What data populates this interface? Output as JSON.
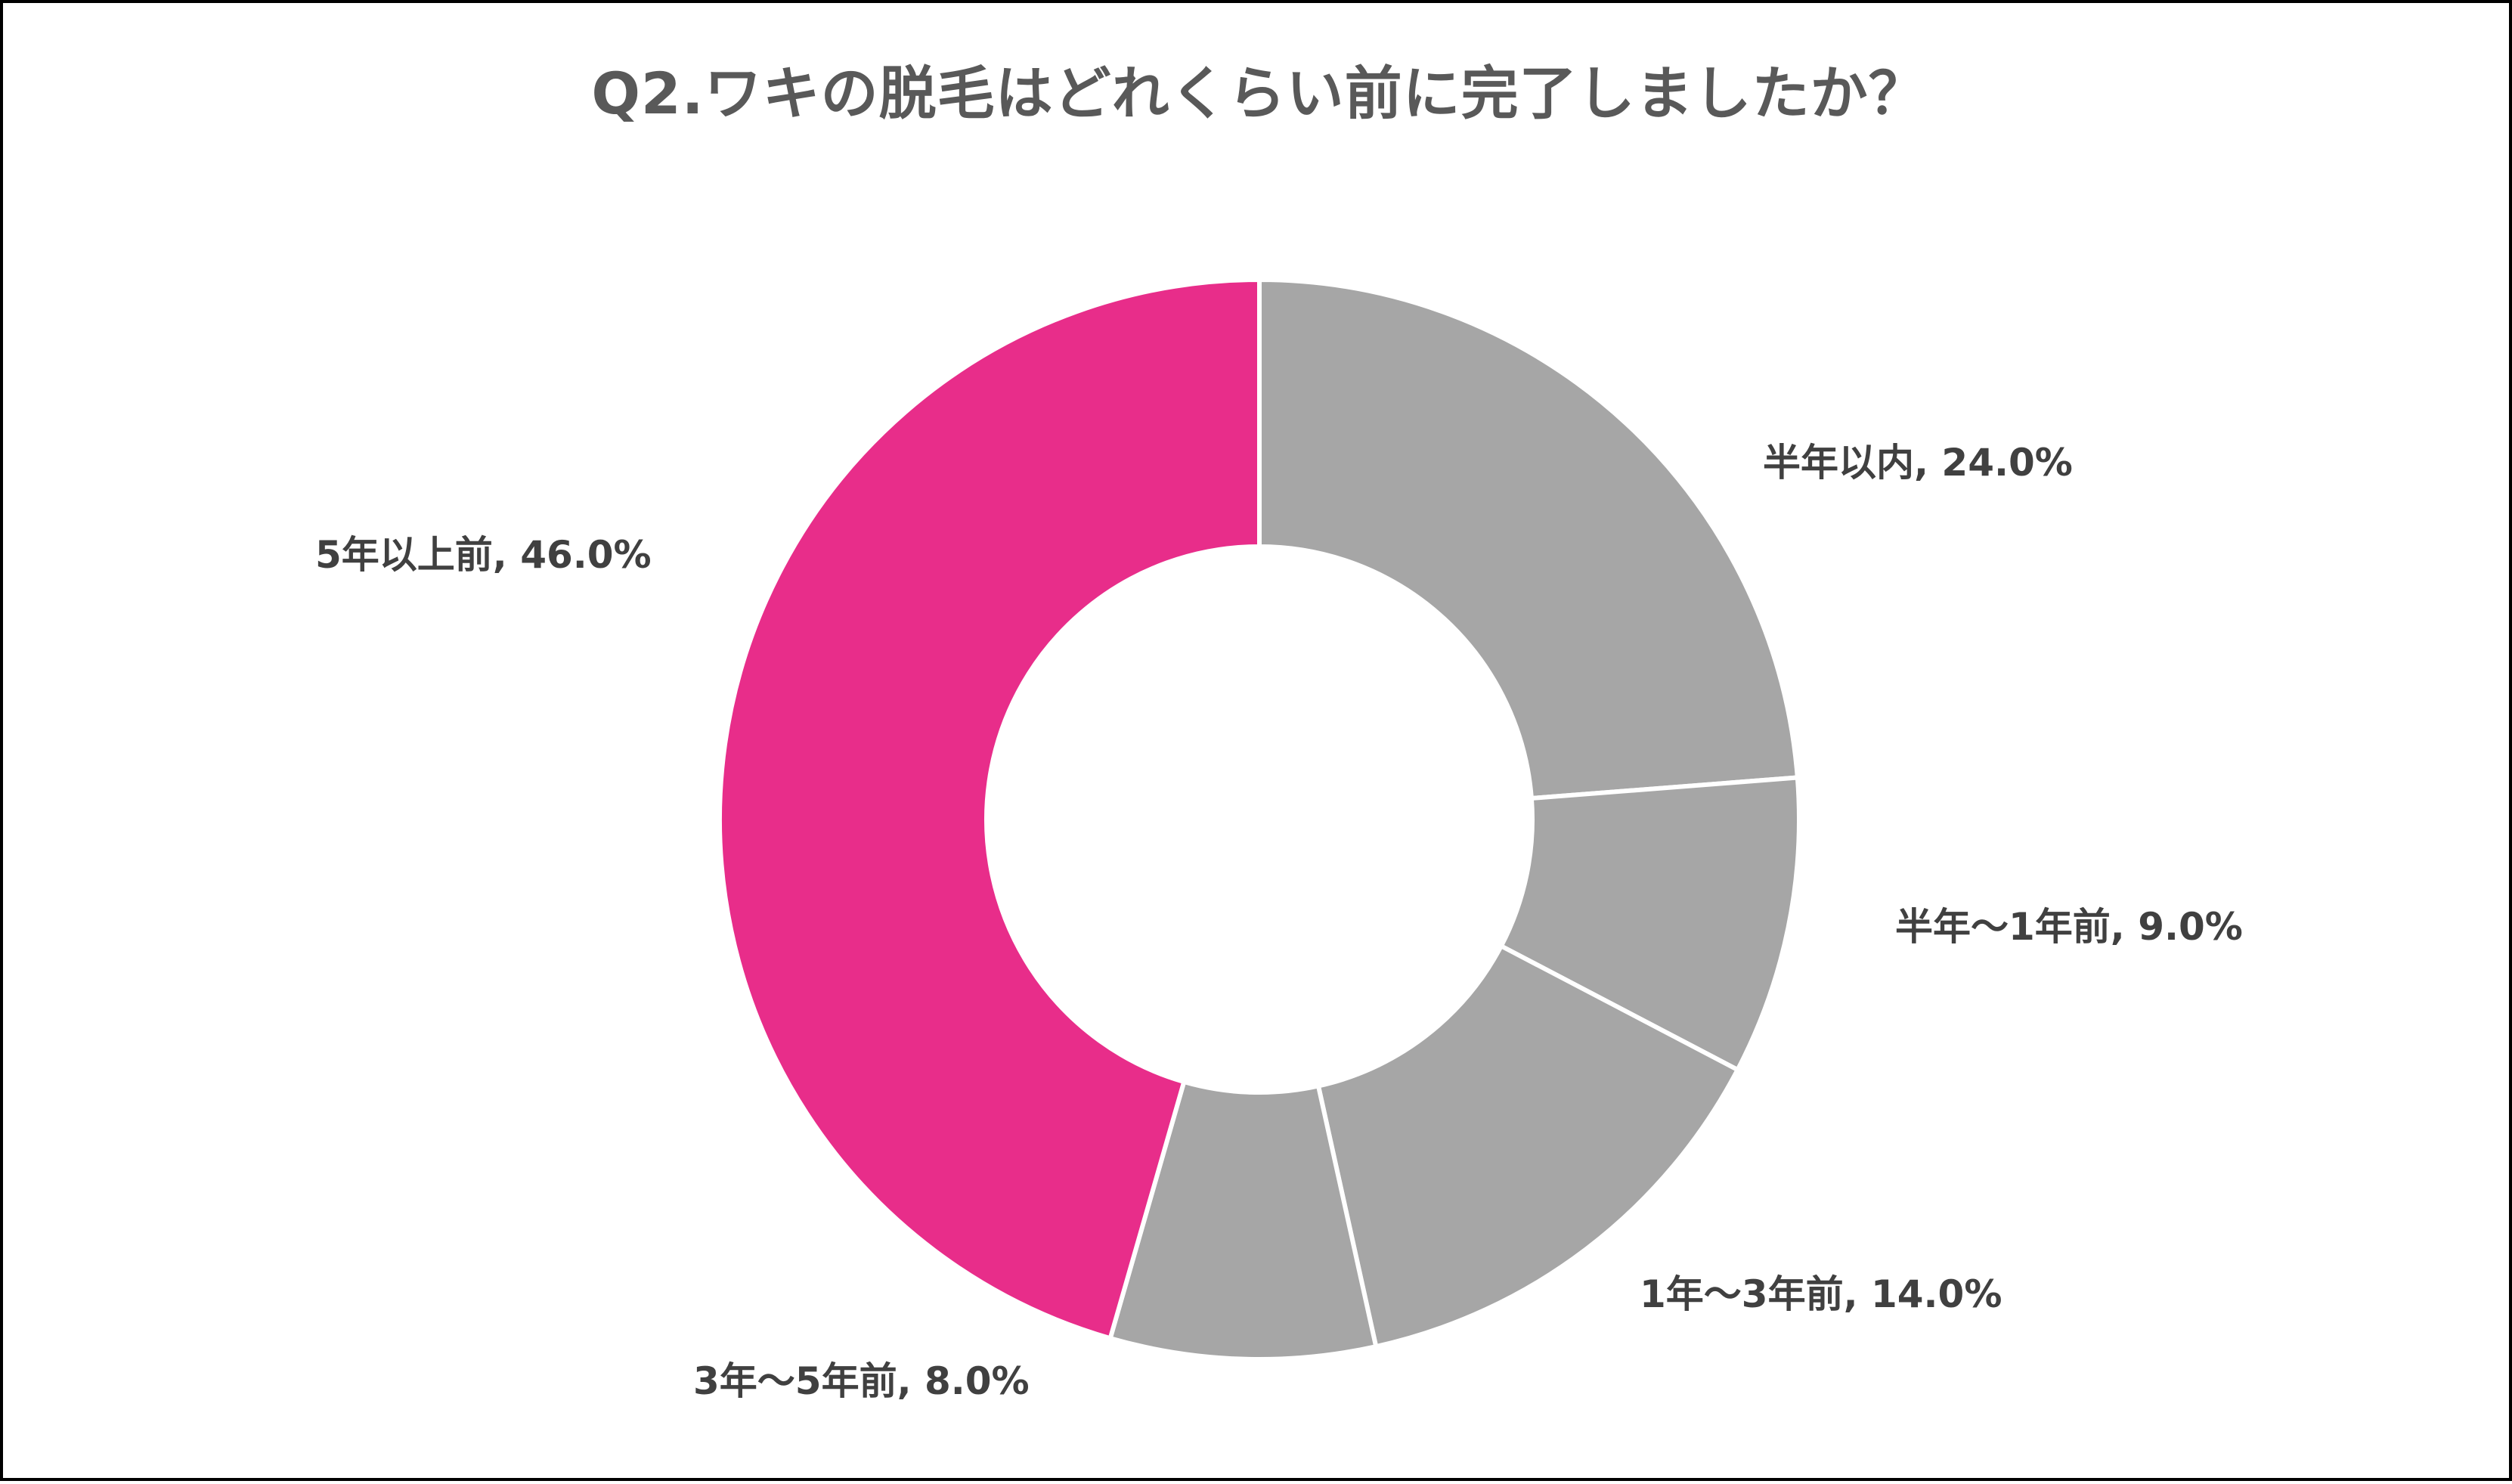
{
  "chart_data": {
    "type": "pie",
    "variant": "donut",
    "title": "Q2.ワキの脱毛はどれくらい前に完了しましたか？",
    "categories": [
      "半年以内",
      "半年～1年前",
      "1年～3年前",
      "3年～5年前",
      "5年以上前"
    ],
    "values": [
      24.0,
      9.0,
      14.0,
      8.0,
      46.0
    ],
    "unit": "%",
    "colors": [
      "#A6A6A6",
      "#A6A6A6",
      "#A6A6A6",
      "#A6A6A6",
      "#E82D8A"
    ],
    "start_angle_deg": 0,
    "direction": "clockwise",
    "legend": "none",
    "data_labels": [
      "半年以内, 24.0%",
      "半年～1年前, 9.0%",
      "1年～3年前, 14.0%",
      "3年～5年前, 8.0%",
      "5年以上前, 46.0%"
    ]
  },
  "style": {
    "separator_color": "#FFFFFF",
    "title_color": "#595959",
    "label_color": "#404040",
    "border_color": "#000000"
  }
}
